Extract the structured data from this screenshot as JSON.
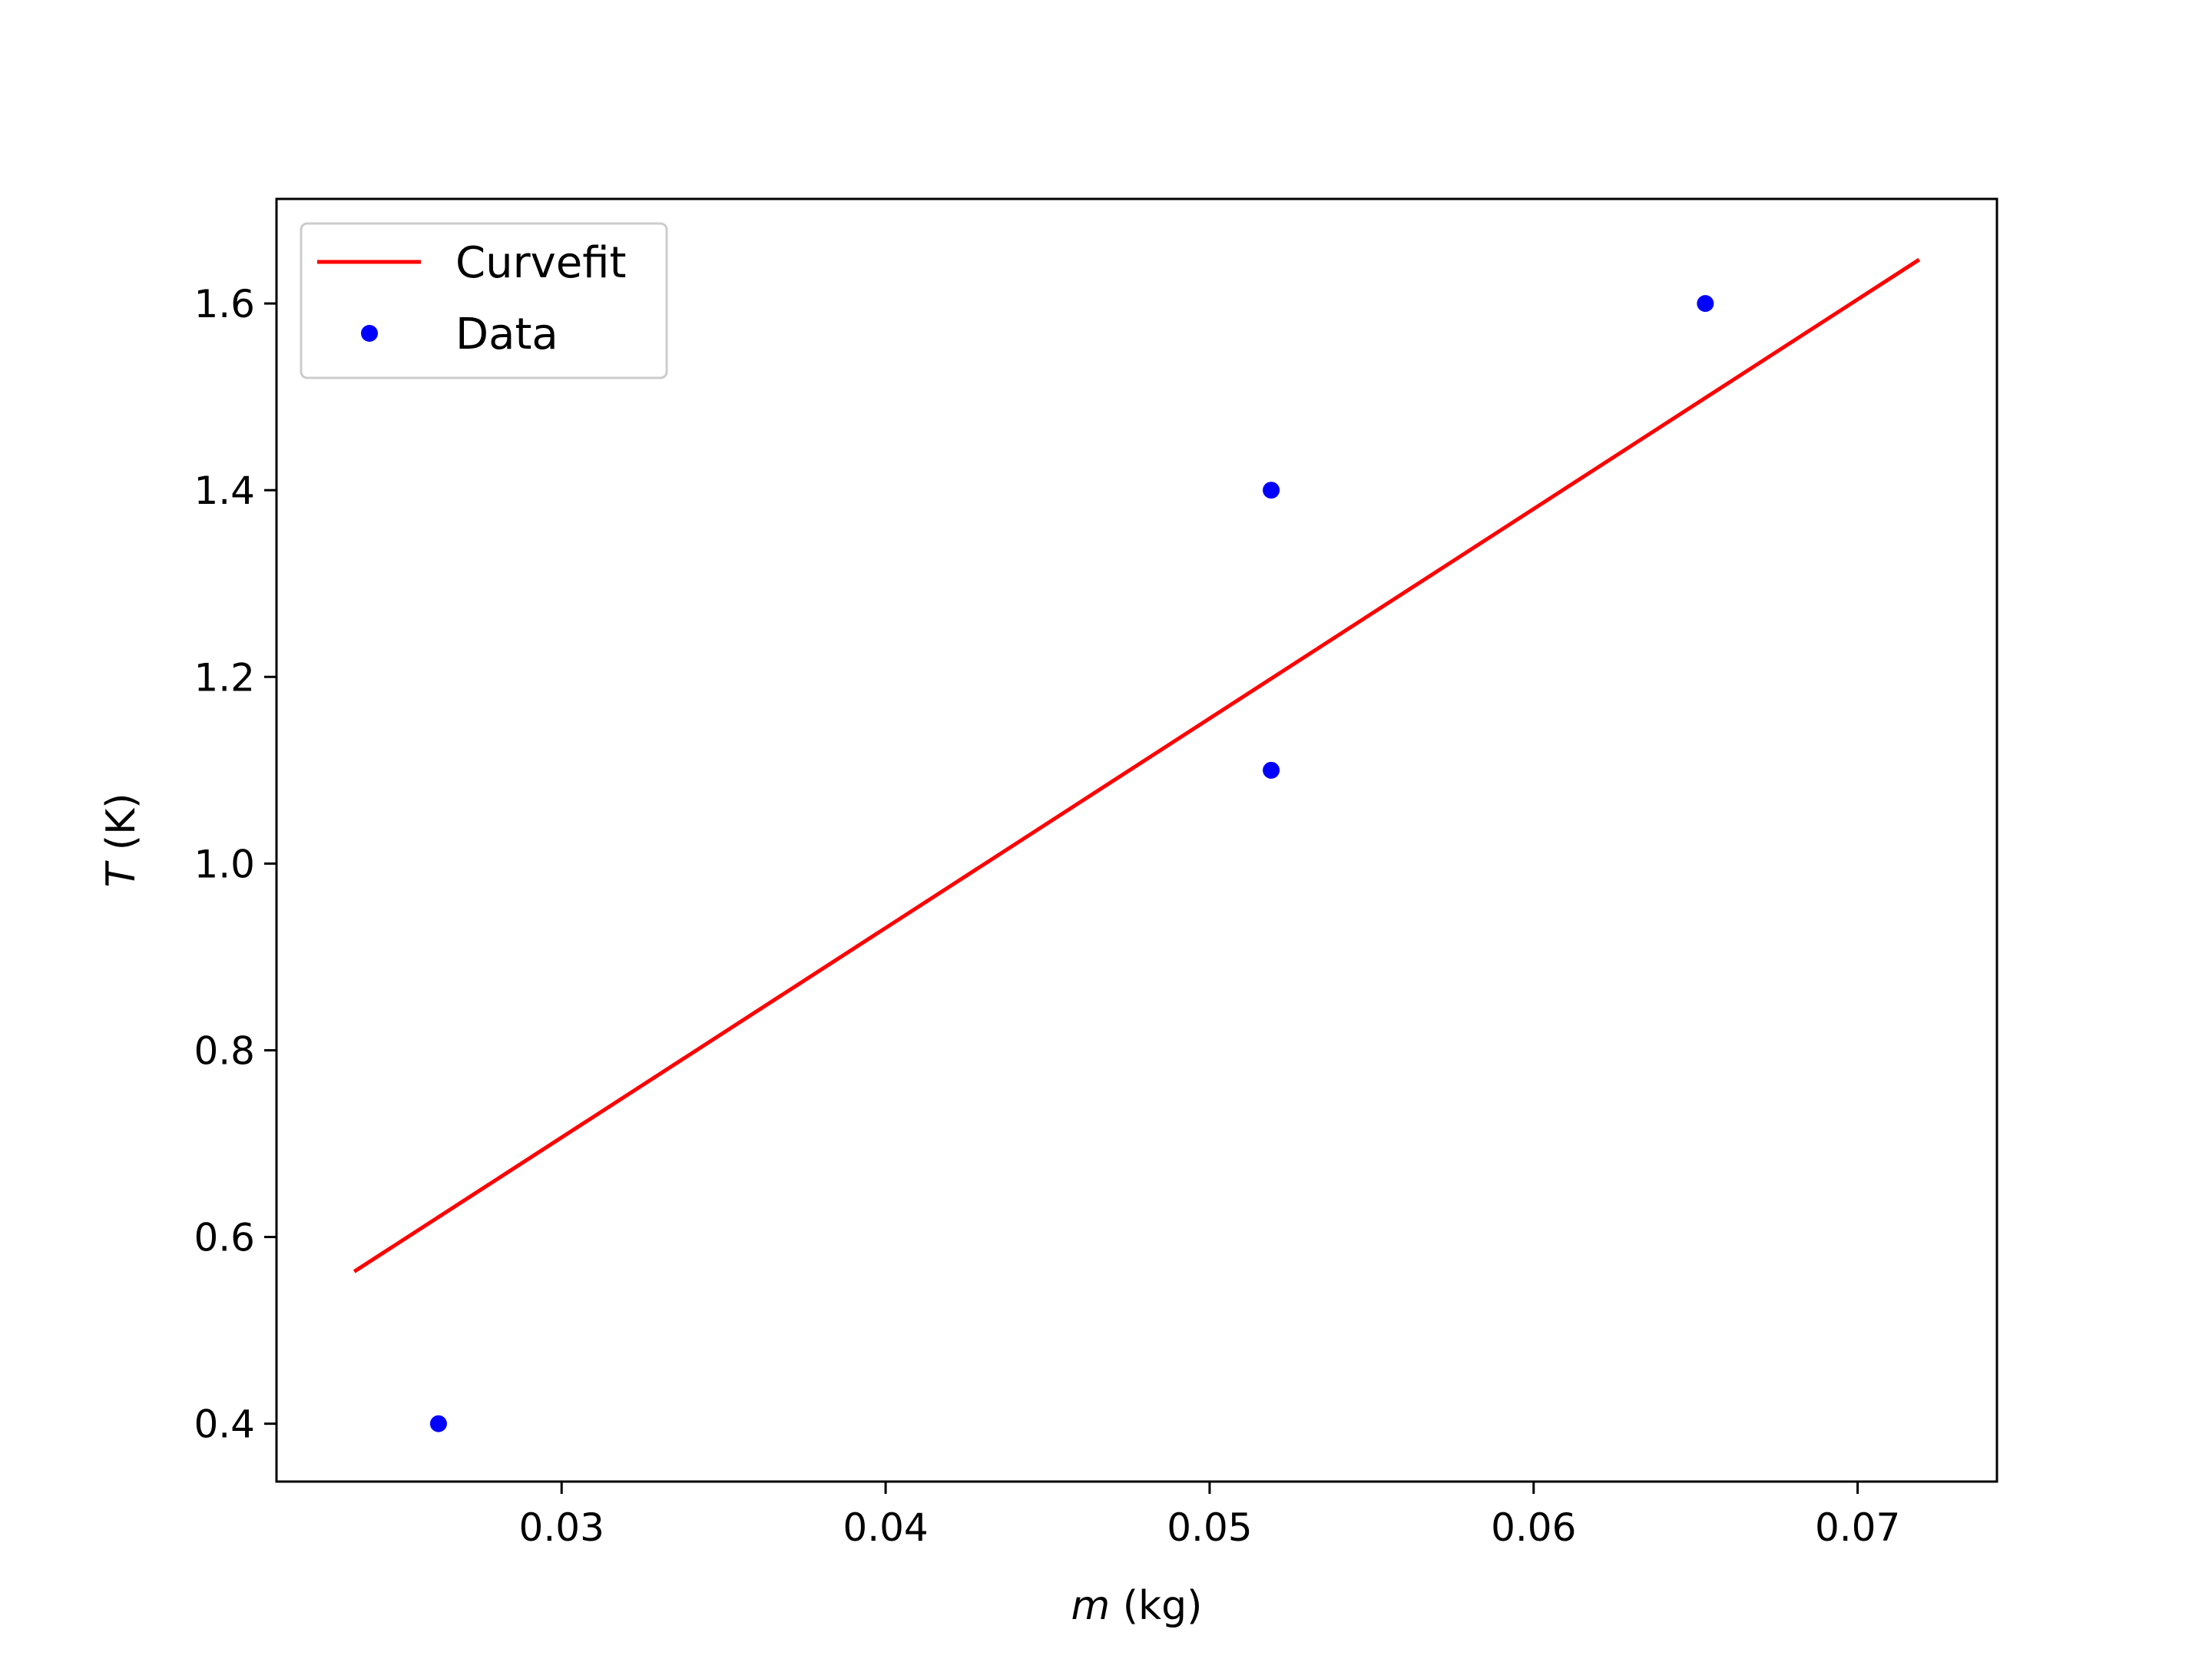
{
  "chart_data": {
    "type": "scatter",
    "title": "",
    "xlabel_var": "m",
    "xlabel_unit": " (kg)",
    "ylabel_var": "T",
    "ylabel_unit": " (K)",
    "xlim": [
      0.0212,
      0.0743
    ],
    "ylim": [
      0.338,
      1.712
    ],
    "xticks": [
      0.03,
      0.04,
      0.05,
      0.06,
      0.07
    ],
    "xtick_labels": [
      "0.03",
      "0.04",
      "0.05",
      "0.06",
      "0.07"
    ],
    "yticks": [
      0.4,
      0.6,
      0.8,
      1.0,
      1.2,
      1.4,
      1.6
    ],
    "ytick_labels": [
      "0.4",
      "0.6",
      "0.8",
      "1.0",
      "1.2",
      "1.4",
      "1.6"
    ],
    "grid": false,
    "legend_position": "top-left",
    "series": [
      {
        "name": "Curvefit",
        "kind": "line",
        "color": "#ff0000",
        "x": [
          0.0236,
          0.0719
        ],
        "y": [
          0.563,
          1.647
        ]
      },
      {
        "name": "Data",
        "kind": "scatter",
        "color": "#0000ff",
        "x": [
          0.0262,
          0.0519,
          0.0519,
          0.0653
        ],
        "y": [
          0.4,
          1.4,
          1.1,
          1.6
        ]
      }
    ]
  }
}
